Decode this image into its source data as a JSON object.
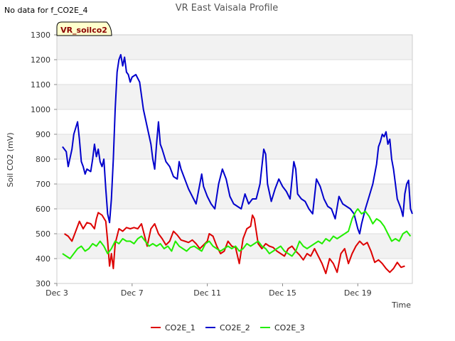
{
  "chart_data": {
    "type": "line",
    "title": "VR East Vaisala Profile",
    "note": "No data for f_CO2E_4",
    "badge": "VR_soilco2",
    "xlabel": "Time",
    "ylabel": "Soil CO2 (mV)",
    "xlim": [
      3,
      21.9
    ],
    "ylim": [
      300,
      1300
    ],
    "yticks": [
      300,
      400,
      500,
      600,
      700,
      800,
      900,
      1000,
      1100,
      1200,
      1300
    ],
    "xticks": [
      {
        "x": 3,
        "label": "Dec 3"
      },
      {
        "x": 7,
        "label": "Dec 7"
      },
      {
        "x": 11,
        "label": "Dec 11"
      },
      {
        "x": 15,
        "label": "Dec 15"
      },
      {
        "x": 19,
        "label": "Dec 19"
      }
    ],
    "band_color": "#f2f2f2",
    "grid_color": "#dddddd",
    "series": [
      {
        "name": "CO2E_1",
        "color": "#dd0000",
        "points": [
          [
            3.4,
            500
          ],
          [
            3.6,
            490
          ],
          [
            3.8,
            470
          ],
          [
            4.0,
            510
          ],
          [
            4.2,
            550
          ],
          [
            4.4,
            520
          ],
          [
            4.6,
            545
          ],
          [
            4.8,
            540
          ],
          [
            5.0,
            520
          ],
          [
            5.1,
            560
          ],
          [
            5.2,
            585
          ],
          [
            5.4,
            575
          ],
          [
            5.6,
            550
          ],
          [
            5.7,
            470
          ],
          [
            5.8,
            370
          ],
          [
            5.9,
            420
          ],
          [
            6.0,
            360
          ],
          [
            6.1,
            460
          ],
          [
            6.3,
            520
          ],
          [
            6.5,
            510
          ],
          [
            6.7,
            525
          ],
          [
            6.9,
            520
          ],
          [
            7.1,
            525
          ],
          [
            7.3,
            520
          ],
          [
            7.5,
            540
          ],
          [
            7.6,
            510
          ],
          [
            7.8,
            450
          ],
          [
            8.0,
            520
          ],
          [
            8.2,
            540
          ],
          [
            8.4,
            500
          ],
          [
            8.6,
            480
          ],
          [
            8.8,
            455
          ],
          [
            9.0,
            470
          ],
          [
            9.2,
            510
          ],
          [
            9.4,
            495
          ],
          [
            9.6,
            475
          ],
          [
            9.8,
            470
          ],
          [
            10.0,
            465
          ],
          [
            10.2,
            475
          ],
          [
            10.4,
            460
          ],
          [
            10.6,
            440
          ],
          [
            10.8,
            455
          ],
          [
            11.0,
            470
          ],
          [
            11.1,
            500
          ],
          [
            11.3,
            490
          ],
          [
            11.5,
            450
          ],
          [
            11.7,
            420
          ],
          [
            11.9,
            430
          ],
          [
            12.1,
            470
          ],
          [
            12.3,
            450
          ],
          [
            12.5,
            445
          ],
          [
            12.7,
            380
          ],
          [
            12.9,
            480
          ],
          [
            13.1,
            520
          ],
          [
            13.3,
            530
          ],
          [
            13.4,
            575
          ],
          [
            13.5,
            560
          ],
          [
            13.7,
            460
          ],
          [
            13.9,
            440
          ],
          [
            14.1,
            460
          ],
          [
            14.3,
            450
          ],
          [
            14.5,
            445
          ],
          [
            14.7,
            430
          ],
          [
            14.9,
            420
          ],
          [
            15.1,
            410
          ],
          [
            15.3,
            440
          ],
          [
            15.5,
            450
          ],
          [
            15.7,
            430
          ],
          [
            15.9,
            415
          ],
          [
            16.1,
            395
          ],
          [
            16.3,
            420
          ],
          [
            16.5,
            410
          ],
          [
            16.7,
            440
          ],
          [
            16.9,
            410
          ],
          [
            17.1,
            380
          ],
          [
            17.3,
            340
          ],
          [
            17.5,
            400
          ],
          [
            17.7,
            380
          ],
          [
            17.9,
            345
          ],
          [
            18.1,
            420
          ],
          [
            18.3,
            440
          ],
          [
            18.5,
            380
          ],
          [
            18.7,
            420
          ],
          [
            18.9,
            450
          ],
          [
            19.1,
            470
          ],
          [
            19.3,
            455
          ],
          [
            19.5,
            465
          ],
          [
            19.7,
            430
          ],
          [
            19.9,
            385
          ],
          [
            20.1,
            395
          ],
          [
            20.3,
            380
          ],
          [
            20.5,
            360
          ],
          [
            20.7,
            345
          ],
          [
            20.9,
            360
          ],
          [
            21.1,
            385
          ],
          [
            21.3,
            365
          ],
          [
            21.5,
            370
          ]
        ]
      },
      {
        "name": "CO2E_2",
        "color": "#0000cc",
        "points": [
          [
            3.3,
            850
          ],
          [
            3.5,
            830
          ],
          [
            3.6,
            770
          ],
          [
            3.8,
            840
          ],
          [
            3.9,
            900
          ],
          [
            4.1,
            950
          ],
          [
            4.2,
            880
          ],
          [
            4.3,
            790
          ],
          [
            4.4,
            770
          ],
          [
            4.5,
            740
          ],
          [
            4.6,
            760
          ],
          [
            4.8,
            750
          ],
          [
            4.9,
            800
          ],
          [
            5.0,
            860
          ],
          [
            5.1,
            810
          ],
          [
            5.2,
            840
          ],
          [
            5.3,
            790
          ],
          [
            5.4,
            770
          ],
          [
            5.5,
            800
          ],
          [
            5.6,
            680
          ],
          [
            5.7,
            580
          ],
          [
            5.8,
            545
          ],
          [
            5.9,
            640
          ],
          [
            6.0,
            800
          ],
          [
            6.1,
            1000
          ],
          [
            6.2,
            1150
          ],
          [
            6.3,
            1200
          ],
          [
            6.4,
            1220
          ],
          [
            6.5,
            1175
          ],
          [
            6.6,
            1210
          ],
          [
            6.7,
            1150
          ],
          [
            6.8,
            1140
          ],
          [
            6.9,
            1110
          ],
          [
            7.0,
            1130
          ],
          [
            7.2,
            1140
          ],
          [
            7.4,
            1110
          ],
          [
            7.6,
            1000
          ],
          [
            7.8,
            930
          ],
          [
            8.0,
            860
          ],
          [
            8.1,
            800
          ],
          [
            8.2,
            760
          ],
          [
            8.3,
            860
          ],
          [
            8.4,
            950
          ],
          [
            8.5,
            860
          ],
          [
            8.6,
            840
          ],
          [
            8.8,
            790
          ],
          [
            9.0,
            770
          ],
          [
            9.2,
            730
          ],
          [
            9.4,
            720
          ],
          [
            9.5,
            790
          ],
          [
            9.6,
            760
          ],
          [
            9.8,
            720
          ],
          [
            10.0,
            680
          ],
          [
            10.2,
            650
          ],
          [
            10.4,
            620
          ],
          [
            10.6,
            700
          ],
          [
            10.7,
            740
          ],
          [
            10.8,
            690
          ],
          [
            11.0,
            650
          ],
          [
            11.2,
            620
          ],
          [
            11.4,
            600
          ],
          [
            11.6,
            700
          ],
          [
            11.8,
            760
          ],
          [
            12.0,
            720
          ],
          [
            12.2,
            650
          ],
          [
            12.4,
            620
          ],
          [
            12.6,
            610
          ],
          [
            12.8,
            600
          ],
          [
            13.0,
            660
          ],
          [
            13.2,
            620
          ],
          [
            13.4,
            640
          ],
          [
            13.6,
            640
          ],
          [
            13.8,
            700
          ],
          [
            14.0,
            840
          ],
          [
            14.1,
            820
          ],
          [
            14.2,
            700
          ],
          [
            14.4,
            630
          ],
          [
            14.6,
            680
          ],
          [
            14.8,
            720
          ],
          [
            15.0,
            690
          ],
          [
            15.2,
            670
          ],
          [
            15.4,
            640
          ],
          [
            15.6,
            790
          ],
          [
            15.7,
            760
          ],
          [
            15.8,
            660
          ],
          [
            16.0,
            640
          ],
          [
            16.2,
            630
          ],
          [
            16.4,
            600
          ],
          [
            16.6,
            580
          ],
          [
            16.8,
            720
          ],
          [
            17.0,
            690
          ],
          [
            17.2,
            640
          ],
          [
            17.4,
            610
          ],
          [
            17.6,
            600
          ],
          [
            17.8,
            560
          ],
          [
            18.0,
            650
          ],
          [
            18.2,
            620
          ],
          [
            18.4,
            610
          ],
          [
            18.6,
            600
          ],
          [
            18.8,
            580
          ],
          [
            19.0,
            520
          ],
          [
            19.1,
            500
          ],
          [
            19.2,
            540
          ],
          [
            19.4,
            600
          ],
          [
            19.6,
            650
          ],
          [
            19.8,
            700
          ],
          [
            20.0,
            780
          ],
          [
            20.1,
            850
          ],
          [
            20.2,
            870
          ],
          [
            20.3,
            900
          ],
          [
            20.4,
            890
          ],
          [
            20.5,
            910
          ],
          [
            20.6,
            860
          ],
          [
            20.7,
            880
          ],
          [
            20.8,
            800
          ],
          [
            20.9,
            760
          ],
          [
            21.0,
            700
          ],
          [
            21.1,
            640
          ],
          [
            21.2,
            620
          ],
          [
            21.3,
            600
          ],
          [
            21.4,
            570
          ],
          [
            21.5,
            660
          ],
          [
            21.6,
            700
          ],
          [
            21.7,
            715
          ],
          [
            21.8,
            600
          ],
          [
            21.9,
            580
          ]
        ]
      },
      {
        "name": "CO2E_3",
        "color": "#22ee00",
        "points": [
          [
            3.3,
            420
          ],
          [
            3.5,
            410
          ],
          [
            3.7,
            400
          ],
          [
            3.9,
            420
          ],
          [
            4.1,
            440
          ],
          [
            4.3,
            450
          ],
          [
            4.5,
            430
          ],
          [
            4.7,
            440
          ],
          [
            4.9,
            460
          ],
          [
            5.1,
            450
          ],
          [
            5.3,
            470
          ],
          [
            5.5,
            450
          ],
          [
            5.7,
            420
          ],
          [
            5.9,
            440
          ],
          [
            6.1,
            470
          ],
          [
            6.3,
            460
          ],
          [
            6.5,
            480
          ],
          [
            6.7,
            470
          ],
          [
            6.9,
            470
          ],
          [
            7.1,
            460
          ],
          [
            7.3,
            480
          ],
          [
            7.5,
            490
          ],
          [
            7.7,
            470
          ],
          [
            7.9,
            450
          ],
          [
            8.1,
            460
          ],
          [
            8.3,
            450
          ],
          [
            8.5,
            460
          ],
          [
            8.7,
            440
          ],
          [
            8.9,
            450
          ],
          [
            9.1,
            430
          ],
          [
            9.3,
            470
          ],
          [
            9.5,
            450
          ],
          [
            9.7,
            440
          ],
          [
            9.9,
            430
          ],
          [
            10.1,
            445
          ],
          [
            10.3,
            450
          ],
          [
            10.5,
            440
          ],
          [
            10.7,
            430
          ],
          [
            10.9,
            460
          ],
          [
            11.1,
            470
          ],
          [
            11.3,
            450
          ],
          [
            11.5,
            440
          ],
          [
            11.7,
            430
          ],
          [
            11.9,
            440
          ],
          [
            12.1,
            450
          ],
          [
            12.3,
            440
          ],
          [
            12.5,
            450
          ],
          [
            12.7,
            430
          ],
          [
            12.9,
            440
          ],
          [
            13.1,
            460
          ],
          [
            13.3,
            450
          ],
          [
            13.5,
            460
          ],
          [
            13.7,
            470
          ],
          [
            13.9,
            450
          ],
          [
            14.1,
            440
          ],
          [
            14.3,
            420
          ],
          [
            14.5,
            430
          ],
          [
            14.7,
            440
          ],
          [
            14.9,
            450
          ],
          [
            15.1,
            430
          ],
          [
            15.3,
            420
          ],
          [
            15.5,
            410
          ],
          [
            15.7,
            430
          ],
          [
            15.9,
            470
          ],
          [
            16.1,
            450
          ],
          [
            16.3,
            440
          ],
          [
            16.5,
            450
          ],
          [
            16.7,
            460
          ],
          [
            16.9,
            470
          ],
          [
            17.1,
            460
          ],
          [
            17.3,
            480
          ],
          [
            17.5,
            470
          ],
          [
            17.7,
            490
          ],
          [
            17.9,
            480
          ],
          [
            18.1,
            490
          ],
          [
            18.3,
            500
          ],
          [
            18.5,
            510
          ],
          [
            18.7,
            560
          ],
          [
            18.9,
            590
          ],
          [
            19.0,
            600
          ],
          [
            19.2,
            580
          ],
          [
            19.4,
            590
          ],
          [
            19.6,
            570
          ],
          [
            19.8,
            540
          ],
          [
            20.0,
            560
          ],
          [
            20.2,
            550
          ],
          [
            20.4,
            530
          ],
          [
            20.6,
            500
          ],
          [
            20.8,
            470
          ],
          [
            21.0,
            480
          ],
          [
            21.2,
            470
          ],
          [
            21.4,
            500
          ],
          [
            21.6,
            510
          ],
          [
            21.8,
            490
          ]
        ]
      }
    ]
  }
}
